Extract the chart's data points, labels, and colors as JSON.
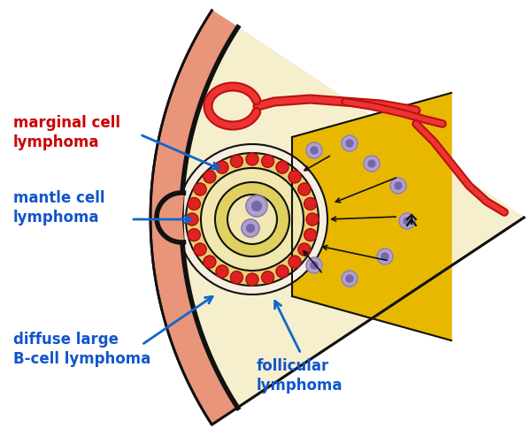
{
  "bg_color": "#ffffff",
  "fig_width": 6.0,
  "fig_height": 4.93,
  "labels": {
    "marginal": "marginal cell\nlymphoma",
    "mantle": "mantle cell\nlymphoma",
    "diffuse": "diffuse large\nB-cell lymphoma",
    "follicular": "follicular\nlymphoma"
  },
  "label_colors": {
    "marginal": "#cc0000",
    "mantle": "#1155cc",
    "diffuse": "#1155cc",
    "follicular": "#1155cc"
  },
  "arrow_color": "#1166cc",
  "skin_color": "#e8957a",
  "white_zone_color": "#f5efce",
  "yellow_zone_color": "#e8b800",
  "mantle_dot_color": "#dd2222",
  "cell_color": "#b0a0cc",
  "cell_border": "#8877aa",
  "black_line": "#111111",
  "blood_vessel_outer": "#bb1111",
  "blood_vessel_inner": "#ee3333",
  "gc_center_color": "#f0e8c0",
  "gc_ring1": "#e8d890",
  "gc_ring2": "#d8c870"
}
